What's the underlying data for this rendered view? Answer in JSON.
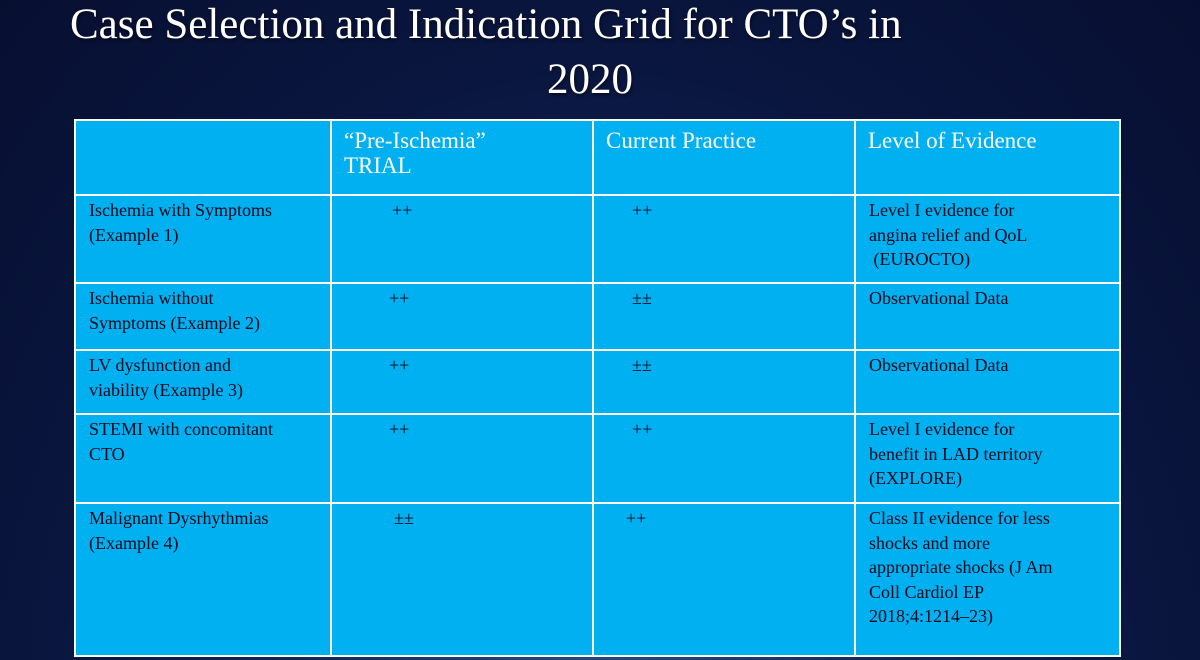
{
  "title": {
    "line1": "Case Selection and Indication Grid for CTO’s in",
    "line2": "2020"
  },
  "table": {
    "headers": [
      "",
      "“Pre-Ischemia” TRIAL",
      "Current Practice",
      "Level of Evidence"
    ],
    "header_pre_line1": "“Pre-Ischemia”",
    "header_pre_line2": "TRIAL",
    "rows": [
      {
        "indication_line1": "Ischemia with Symptoms",
        "indication_line2": "(Example 1)",
        "pre_ischemia_trial": "++",
        "current_practice": "++",
        "evidence_line1": "Level I evidence for",
        "evidence_line2": "angina relief and QoL",
        "evidence_line3": " (EUROCTO)"
      },
      {
        "indication_line1": "Ischemia without",
        "indication_line2": "Symptoms (Example 2)",
        "pre_ischemia_trial": "++",
        "current_practice": "±±",
        "evidence_line1": "Observational Data"
      },
      {
        "indication_line1": "LV dysfunction and",
        "indication_line2": "viability (Example 3)",
        "pre_ischemia_trial": "++",
        "current_practice": "±±",
        "evidence_line1": "Observational Data"
      },
      {
        "indication_line1": "STEMI with concomitant",
        "indication_line2": "CTO",
        "pre_ischemia_trial": "++",
        "current_practice": "++",
        "evidence_line1": "Level I evidence for",
        "evidence_line2": "benefit in LAD territory",
        "evidence_line3": "(EXPLORE)"
      },
      {
        "indication_line1": "Malignant Dysrhythmias",
        "indication_line2": "(Example 4)",
        "pre_ischemia_trial": "±±",
        "current_practice": "++",
        "evidence_line1": "Class II evidence for less",
        "evidence_line2": "shocks and more",
        "evidence_line3": "appropriate shocks (J Am",
        "evidence_line4": "Coll Cardiol EP",
        "evidence_line5": "2018;4:1214–23)"
      }
    ]
  },
  "colors": {
    "table_fill": "#00b0f0",
    "table_border": "#ffffff",
    "header_text": "#ffffff",
    "body_text": "#0a0a1e",
    "background": "#0a163f"
  }
}
